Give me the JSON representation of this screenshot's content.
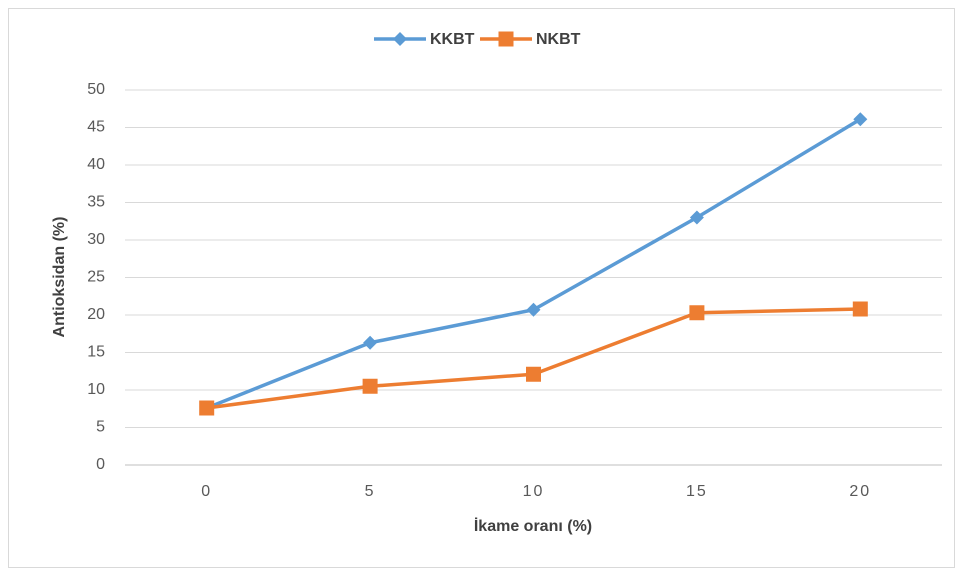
{
  "chart_data": {
    "type": "line",
    "xlabel": "İkame oranı (%)",
    "ylabel": "Antioksidan (%)",
    "categories": [
      "0",
      "5",
      "10",
      "15",
      "20"
    ],
    "series": [
      {
        "name": "KKBT",
        "color": "#5b9bd5",
        "marker": "diamond",
        "values": [
          7.6,
          16.3,
          20.7,
          33.0,
          46.1
        ]
      },
      {
        "name": "NKBT",
        "color": "#ed7d31",
        "marker": "square",
        "values": [
          7.6,
          10.5,
          12.1,
          20.3,
          20.8
        ]
      }
    ],
    "ylim": [
      0,
      50
    ],
    "yticks": [
      0,
      5,
      10,
      15,
      20,
      25,
      30,
      35,
      40,
      45,
      50
    ],
    "grid": true,
    "legend": "top"
  }
}
